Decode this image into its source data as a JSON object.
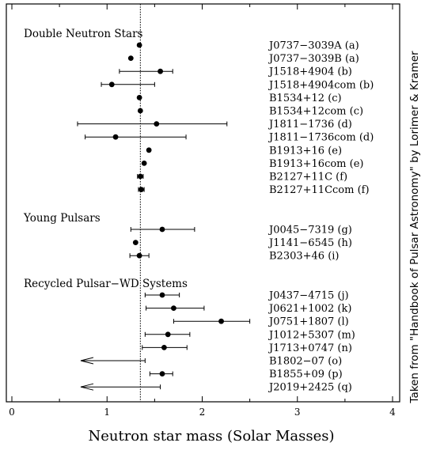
{
  "chart_data": {
    "type": "scatter",
    "title": "",
    "xlabel": "Neutron star mass (Solar Masses)",
    "credit": "Taken from \"Handbook of Pulsar Astronomy\" by Lorimer & Kramer",
    "xlim": [
      -0.05,
      4.15
    ],
    "xticks": [
      0,
      1,
      2,
      3,
      4
    ],
    "reference_line_x": 1.35,
    "groups": [
      {
        "name": "Double Neutron Stars",
        "points": [
          {
            "label": "J0737−3039A (a)",
            "mass": 1.34,
            "lo": null,
            "hi": null,
            "upper_limit": false
          },
          {
            "label": "J0737−3039B (a)",
            "mass": 1.25,
            "lo": null,
            "hi": null,
            "upper_limit": false
          },
          {
            "label": "J1518+4904 (b)",
            "mass": 1.56,
            "lo": 1.13,
            "hi": 1.69,
            "upper_limit": false
          },
          {
            "label": "J1518+4904com (b)",
            "mass": 1.05,
            "lo": 0.94,
            "hi": 1.5,
            "upper_limit": false
          },
          {
            "label": "B1534+12 (c)",
            "mass": 1.34,
            "lo": null,
            "hi": null,
            "upper_limit": false
          },
          {
            "label": "B1534+12com (c)",
            "mass": 1.35,
            "lo": null,
            "hi": null,
            "upper_limit": false
          },
          {
            "label": "J1811−1736 (d)",
            "mass": 1.52,
            "lo": 0.69,
            "hi": 2.26,
            "upper_limit": false
          },
          {
            "label": "J1811−1736com (d)",
            "mass": 1.09,
            "lo": 0.77,
            "hi": 1.83,
            "upper_limit": false
          },
          {
            "label": "B1913+16 (e)",
            "mass": 1.44,
            "lo": null,
            "hi": null,
            "upper_limit": false
          },
          {
            "label": "B1913+16com (e)",
            "mass": 1.39,
            "lo": null,
            "hi": null,
            "upper_limit": false
          },
          {
            "label": "B2127+11C (f)",
            "mass": 1.35,
            "lo": 1.32,
            "hi": 1.38,
            "upper_limit": false
          },
          {
            "label": "B2127+11Ccom (f)",
            "mass": 1.36,
            "lo": 1.33,
            "hi": 1.39,
            "upper_limit": false
          }
        ]
      },
      {
        "name": "Young Pulsars",
        "points": [
          {
            "label": "J0045−7319 (g)",
            "mass": 1.58,
            "lo": 1.25,
            "hi": 1.92,
            "upper_limit": false
          },
          {
            "label": "J1141−6545 (h)",
            "mass": 1.3,
            "lo": null,
            "hi": null,
            "upper_limit": false
          },
          {
            "label": "B2303+46 (i)",
            "mass": 1.34,
            "lo": 1.24,
            "hi": 1.44,
            "upper_limit": false
          }
        ]
      },
      {
        "name": "Recycled Pulsar−WD Systems",
        "points": [
          {
            "label": "J0437−4715 (j)",
            "mass": 1.58,
            "lo": 1.4,
            "hi": 1.76,
            "upper_limit": false
          },
          {
            "label": "J0621+1002 (k)",
            "mass": 1.7,
            "lo": 1.41,
            "hi": 2.02,
            "upper_limit": false
          },
          {
            "label": "J0751+1807 (l)",
            "mass": 2.2,
            "lo": 1.7,
            "hi": 2.5,
            "upper_limit": false
          },
          {
            "label": "J1012+5307 (m)",
            "mass": 1.64,
            "lo": 1.4,
            "hi": 1.87,
            "upper_limit": false
          },
          {
            "label": "J1713+0747 (n)",
            "mass": 1.6,
            "lo": 1.37,
            "hi": 1.84,
            "upper_limit": false
          },
          {
            "label": "B1802−07 (o)",
            "mass": 1.4,
            "lo": null,
            "hi": null,
            "upper_limit": true
          },
          {
            "label": "B1855+09 (p)",
            "mass": 1.58,
            "lo": 1.45,
            "hi": 1.69,
            "upper_limit": false
          },
          {
            "label": "J2019+2425 (q)",
            "mass": 1.56,
            "lo": null,
            "hi": null,
            "upper_limit": true
          }
        ]
      }
    ]
  }
}
